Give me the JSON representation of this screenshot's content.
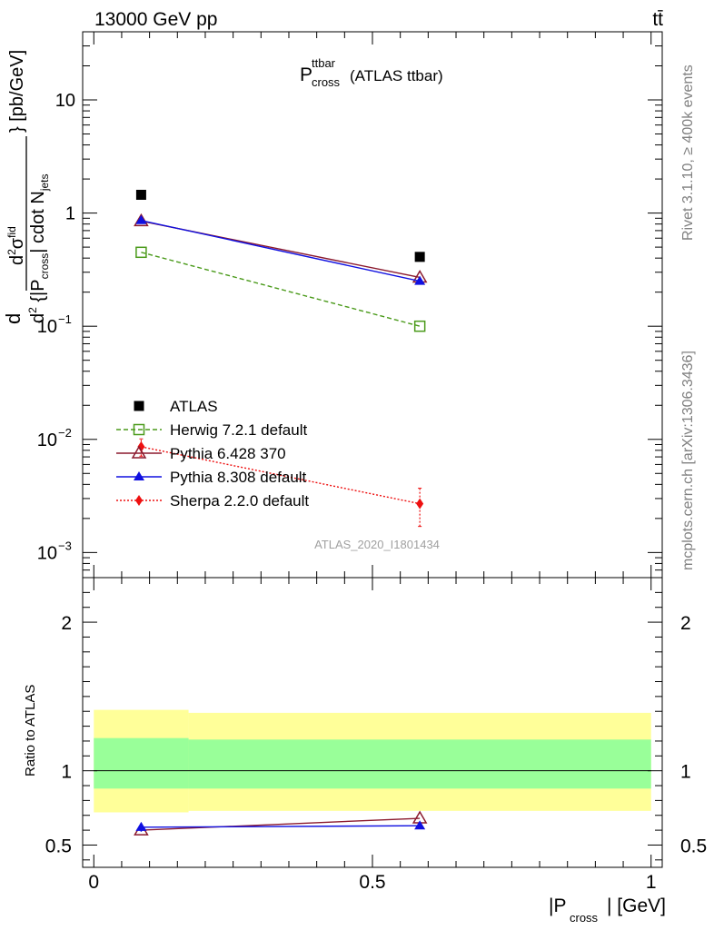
{
  "header": {
    "energy_label": "13000 GeV pp",
    "process_label": "tt̄"
  },
  "side_labels": {
    "rivet": "Rivet 3.1.10, ≥ 400k events",
    "mcplots": "mcplots.cern.ch [arXiv:1306.3436]"
  },
  "watermark": "ATLAS_2020_I1801434",
  "chart_data": [
    {
      "type": "scatter",
      "panel": "main",
      "title": "P_cross^ttbar (ATLAS ttbar)",
      "title_parts": {
        "main": "P",
        "sup": "ttbar",
        "sub": "cross",
        "suffix": "(ATLAS ttbar)"
      },
      "ylabel": "d²σ^fid / d²{|P_cross| cdot N_jets} [pb/GeV]",
      "yscale": "log",
      "ylim": [
        0.0006,
        40
      ],
      "xlim": [
        -0.02,
        1.02
      ],
      "y_ticks": [
        {
          "value": 0.001,
          "base": "10",
          "exp": "−3"
        },
        {
          "value": 0.01,
          "base": "10",
          "exp": "−2"
        },
        {
          "value": 0.1,
          "base": "10",
          "exp": "−1"
        },
        {
          "value": 1,
          "label": "1"
        },
        {
          "value": 10,
          "label": "10"
        }
      ],
      "legend_position": "lower-left",
      "series": [
        {
          "name": "ATLAS",
          "color": "#000000",
          "marker": "square",
          "line": "none",
          "x": [
            0.085,
            0.585
          ],
          "y": [
            1.45,
            0.41
          ]
        },
        {
          "name": "Herwig 7.2.1 default",
          "color": "#4a9a1a",
          "marker": "open-square",
          "line": "dashed",
          "x": [
            0.085,
            0.585
          ],
          "y": [
            0.45,
            0.1
          ]
        },
        {
          "name": "Pythia 6.428 370",
          "color": "#8b1a2e",
          "marker": "open-triangle",
          "line": "solid",
          "x": [
            0.085,
            0.585
          ],
          "y": [
            0.85,
            0.27
          ]
        },
        {
          "name": "Pythia 8.308 default",
          "color": "#1010e0",
          "marker": "filled-triangle",
          "line": "solid",
          "x": [
            0.085,
            0.585
          ],
          "y": [
            0.86,
            0.25
          ]
        },
        {
          "name": "Sherpa 2.2.0 default",
          "color": "#ee1010",
          "marker": "diamond",
          "line": "dotted",
          "x": [
            0.085,
            0.585
          ],
          "y": [
            0.0086,
            0.0027
          ],
          "yerr_low": [
            0.0015,
            0.001
          ],
          "yerr_high": [
            0.0015,
            0.001
          ]
        }
      ]
    },
    {
      "type": "line",
      "panel": "ratio",
      "ylabel": "Ratio to ATLAS",
      "xlabel": "|P_cross| [GeV]",
      "xlabel_parts": {
        "pre": "|P",
        "sub": "cross",
        "post": "| [GeV]"
      },
      "ylim": [
        0.35,
        2.3
      ],
      "xlim": [
        -0.02,
        1.02
      ],
      "y_ticks": [
        0.5,
        1,
        2
      ],
      "x_ticks": [
        0,
        0.5,
        1
      ],
      "x_tick_labels": [
        "0",
        "0.5",
        "1"
      ],
      "reference_line": 1,
      "bands": [
        {
          "name": "outer",
          "color": "#ffff99",
          "bins": [
            {
              "x0": 0,
              "x1": 0.17,
              "lo": 0.72,
              "hi": 1.41
            },
            {
              "x0": 0.17,
              "x1": 1.0,
              "lo": 0.73,
              "hi": 1.39
            }
          ]
        },
        {
          "name": "inner",
          "color": "#99ff99",
          "bins": [
            {
              "x0": 0,
              "x1": 0.17,
              "lo": 0.88,
              "hi": 1.22
            },
            {
              "x0": 0.17,
              "x1": 1.0,
              "lo": 0.88,
              "hi": 1.21
            }
          ]
        }
      ],
      "series": [
        {
          "name": "Pythia 6.428 370",
          "color": "#8b1a2e",
          "marker": "open-triangle",
          "x": [
            0.085,
            0.585
          ],
          "y": [
            0.6,
            0.68
          ]
        },
        {
          "name": "Pythia 8.308 default",
          "color": "#1010e0",
          "marker": "filled-triangle",
          "x": [
            0.085,
            0.585
          ],
          "y": [
            0.62,
            0.63
          ],
          "yerr_low": [
            0.03,
            0.02
          ],
          "yerr_high": [
            0.03,
            0.02
          ]
        }
      ]
    }
  ]
}
